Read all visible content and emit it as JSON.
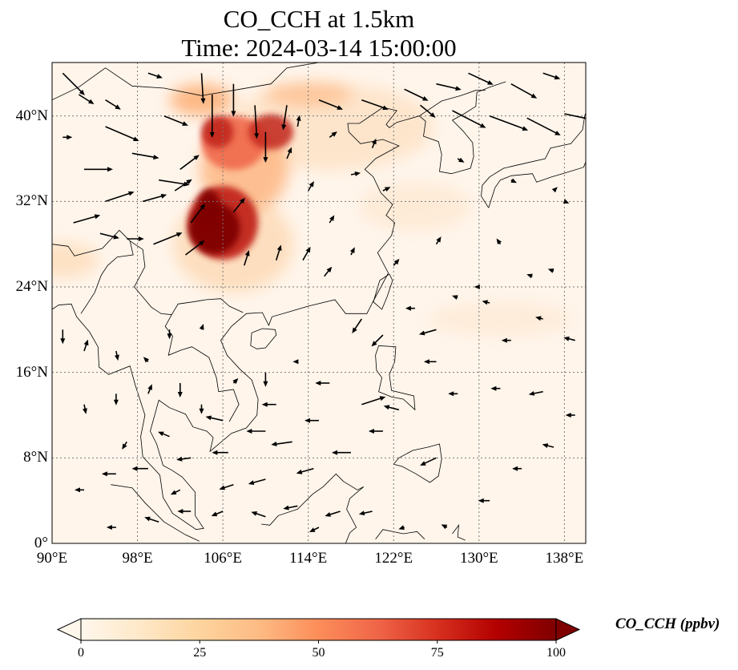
{
  "title": {
    "line1": "CO_CCH at 1.5km",
    "line2": "Time: 2024-03-14 15:00:00"
  },
  "map": {
    "x_ticks": [
      "90°E",
      "98°E",
      "106°E",
      "114°E",
      "122°E",
      "130°E",
      "138°E"
    ],
    "y_ticks": [
      "40°N",
      "32°N",
      "24°N",
      "16°N",
      "8°N",
      "0°"
    ],
    "x_tick_values": [
      90,
      98,
      106,
      114,
      122,
      130,
      138
    ],
    "y_tick_values": [
      40,
      32,
      24,
      16,
      8,
      0
    ],
    "lon_range": [
      90,
      140
    ],
    "lat_range": [
      0,
      45
    ],
    "gridlines": true,
    "colormap": "OrRd",
    "background_color": "#fff5eb",
    "plume_colors": [
      "#fdd9b4",
      "#fdb27c",
      "#ef6548",
      "#c2281b",
      "#7f0000"
    ]
  },
  "colorbar": {
    "label": "CO_CCH (ppbv)",
    "ticks": [
      "0",
      "25",
      "50",
      "75",
      "100"
    ],
    "tick_values": [
      0,
      25,
      50,
      75,
      100
    ],
    "min": 0,
    "max": 100,
    "extend": "both",
    "colors": [
      "#fff7ec",
      "#fee8c8",
      "#fdd49e",
      "#fdbb84",
      "#fc8d59",
      "#ef6548",
      "#d7301f",
      "#b30000",
      "#7f0000"
    ]
  }
}
